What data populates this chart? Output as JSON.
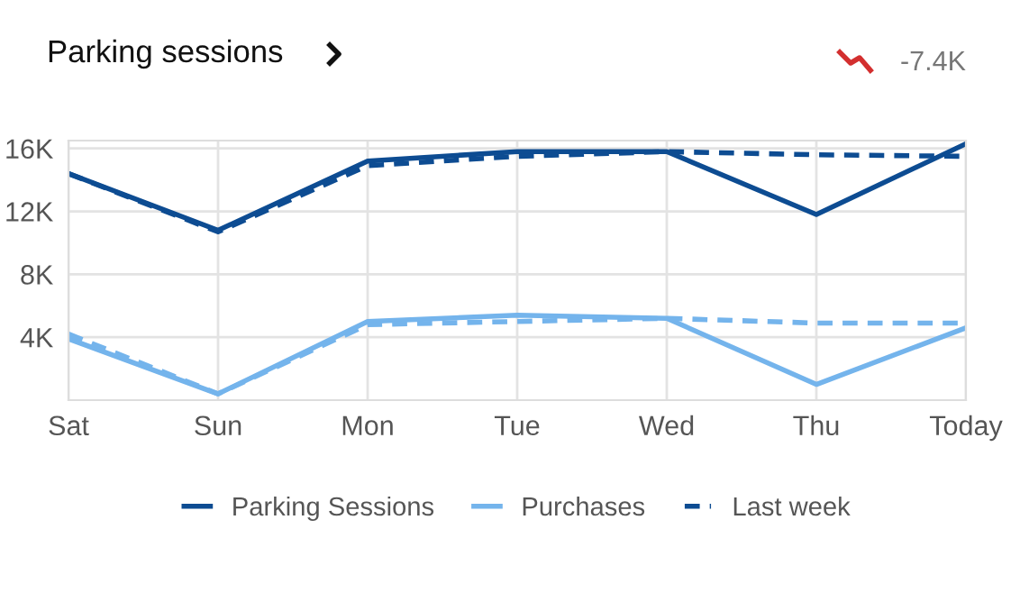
{
  "chart_data": {
    "type": "line",
    "title": "Parking sessions",
    "annotations": [
      "-7.4K"
    ],
    "categories": [
      "Sat",
      "Sun",
      "Mon",
      "Tue",
      "Wed",
      "Thu",
      "Today"
    ],
    "series": [
      {
        "name": "Parking Sessions",
        "color": "#0d4c92",
        "values": [
          14400,
          10800,
          15200,
          15800,
          15800,
          11800,
          16300
        ]
      },
      {
        "name": "Purchases",
        "color": "#74b4ec",
        "values": [
          3900,
          400,
          5000,
          5400,
          5200,
          1000,
          4600
        ]
      },
      {
        "name": "Last week",
        "color": "#0d4c92",
        "line_style": "dashed",
        "values": [
          14400,
          10700,
          14900,
          15500,
          15800,
          15600,
          15500
        ]
      },
      {
        "color": "#74b4ec",
        "line_style": "dashed",
        "values": [
          4200,
          400,
          4800,
          5000,
          5200,
          4900,
          4900
        ]
      }
    ],
    "ylim": [
      0,
      16500
    ],
    "yticks": [
      {
        "value": 4000,
        "label": "4K"
      },
      {
        "value": 8000,
        "label": "8K"
      },
      {
        "value": 12000,
        "label": "12K"
      },
      {
        "value": 16000,
        "label": "16K"
      }
    ],
    "grid": true,
    "legend": "bottom",
    "marker": "none"
  }
}
